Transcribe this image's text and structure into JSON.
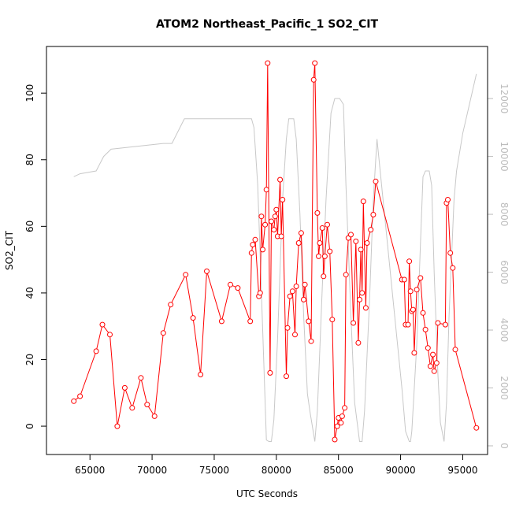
{
  "chart_data": {
    "type": "line",
    "title": "ATOM2 Northeast_Pacific_1 SO2_CIT",
    "xlabel": "UTC Seconds",
    "ylabel": "SO2_CIT",
    "xlim": [
      61500,
      97000
    ],
    "ylim": [
      -8.5,
      114
    ],
    "y2lim": [
      -300,
      13800
    ],
    "x_ticks": [
      65000,
      70000,
      75000,
      80000,
      85000,
      90000,
      95000
    ],
    "x_tick_labels": [
      "65000",
      "70000",
      "75000",
      "80000",
      "85000",
      "90000",
      "95000"
    ],
    "y_ticks": [
      0,
      20,
      40,
      60,
      80,
      100
    ],
    "y_tick_labels": [
      "0",
      "20",
      "40",
      "60",
      "80",
      "100"
    ],
    "y2_ticks": [
      0,
      2000,
      4000,
      6000,
      8000,
      10000,
      12000
    ],
    "y2_tick_labels": [
      "0",
      "2000",
      "4000",
      "6000",
      "8000",
      "10000",
      "12000"
    ],
    "grid": false,
    "series": [
      {
        "role": "primary",
        "color": "#ff0000",
        "marker": "open-circle",
        "x": [
          63700,
          64200,
          65500,
          66000,
          66600,
          67200,
          67800,
          68400,
          69100,
          69600,
          70200,
          70900,
          71500,
          72700,
          73300,
          73900,
          74400,
          75600,
          76300,
          76900,
          77900,
          78000,
          78100,
          78300,
          78600,
          78700,
          78800,
          78900,
          79100,
          79200,
          79300,
          79500,
          79600,
          79800,
          79900,
          80000,
          80100,
          80300,
          80400,
          80500,
          80800,
          80900,
          81100,
          81300,
          81500,
          81600,
          81800,
          82000,
          82200,
          82300,
          82600,
          82800,
          83000,
          83100,
          83300,
          83400,
          83500,
          83700,
          83800,
          83900,
          84100,
          84300,
          84500,
          84700,
          84900,
          85000,
          85200,
          85300,
          85500,
          85600,
          85800,
          86000,
          86200,
          86400,
          86600,
          86700,
          86800,
          86900,
          87000,
          87200,
          87300,
          87600,
          87800,
          88000,
          90100,
          90300,
          90400,
          90600,
          90700,
          90800,
          90900,
          91000,
          91100,
          91300,
          91600,
          91800,
          92000,
          92200,
          92400,
          92600,
          92700,
          92900,
          93000,
          93600,
          93700,
          93800,
          94000,
          94200,
          94400,
          96100
        ],
        "y": [
          7.5,
          9,
          22.5,
          30.5,
          27.5,
          0,
          11.5,
          5.5,
          14.5,
          6.5,
          3,
          28,
          36.5,
          45.5,
          32.5,
          15.5,
          46.5,
          31.5,
          42.5,
          41.5,
          31.5,
          52,
          54.5,
          56,
          39,
          40,
          63,
          53,
          60.5,
          71,
          109,
          16,
          61.5,
          59,
          63,
          65,
          57,
          74,
          57,
          68,
          15,
          29.5,
          39,
          40.5,
          27.5,
          42,
          55,
          58,
          38,
          42.5,
          31.5,
          25.5,
          104,
          109,
          64,
          51,
          55,
          59.5,
          45,
          51,
          60.5,
          52.5,
          32,
          -4,
          0,
          2.5,
          1,
          3,
          5.5,
          45.5,
          56.5,
          57.5,
          31,
          55.5,
          25,
          38,
          53,
          40,
          67.5,
          35.5,
          55,
          59,
          63.5,
          73.5,
          44,
          44,
          30.5,
          30.5,
          49.5,
          40.5,
          34.5,
          35,
          22,
          41,
          44.5,
          34,
          29,
          23.5,
          18,
          21.5,
          16.5,
          19,
          31,
          30.5,
          67,
          68,
          52,
          47.5,
          23,
          -0.5
        ]
      },
      {
        "role": "secondary-axis",
        "color": "#c8c8c8",
        "marker": "none",
        "x": [
          63700,
          64200,
          65500,
          66100,
          66700,
          70900,
          71600,
          72600,
          78000,
          78200,
          78500,
          78900,
          79200,
          79400,
          79600,
          79800,
          80100,
          80500,
          80800,
          81000,
          81400,
          81600,
          81900,
          82200,
          82500,
          82700,
          83100,
          83300,
          83700,
          84000,
          84400,
          84700,
          85100,
          85400,
          85600,
          86000,
          86300,
          86700,
          86900,
          87100,
          87500,
          87800,
          88100,
          90100,
          90400,
          90700,
          90800,
          90900,
          91300,
          91600,
          91800,
          92000,
          92300,
          92500,
          92700,
          93000,
          93200,
          93500,
          93700,
          93900,
          94300,
          94500,
          95000,
          96100
        ],
        "y": [
          9300,
          9400,
          9500,
          10000,
          10250,
          10450,
          10450,
          11300,
          11300,
          11000,
          9000,
          4000,
          200,
          150,
          150,
          900,
          3700,
          8500,
          10600,
          11300,
          11300,
          10600,
          8000,
          4500,
          1800,
          1200,
          150,
          1200,
          5500,
          8500,
          11500,
          12000,
          12000,
          11800,
          9000,
          4500,
          1500,
          150,
          150,
          1200,
          5000,
          8500,
          10600,
          2000,
          500,
          150,
          150,
          500,
          3500,
          7000,
          9300,
          9500,
          9500,
          9000,
          6000,
          2500,
          800,
          150,
          1500,
          4500,
          8500,
          9500,
          10800,
          12850
        ]
      }
    ]
  }
}
